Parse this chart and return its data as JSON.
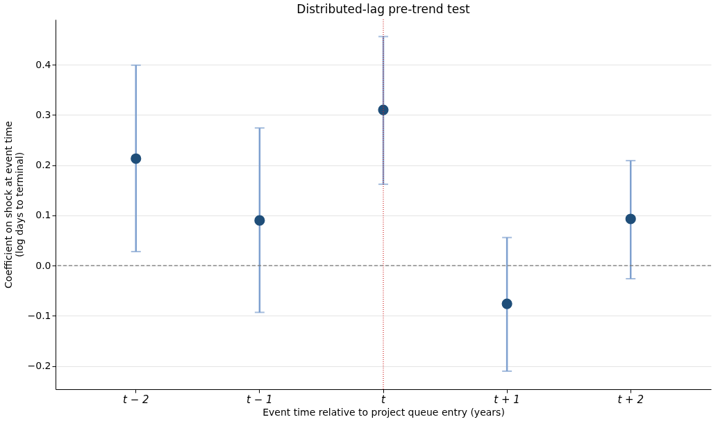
{
  "chart_data": {
    "type": "scatter",
    "title": "Distributed-lag pre-trend test",
    "xlabel": "Event time relative to project queue entry (years)",
    "ylabel": "Coefficient on shock at event time\n(log days to terminal)",
    "categories": [
      "t − 2",
      "t − 1",
      "t",
      "t + 1",
      "t + 2"
    ],
    "series": [
      {
        "color": "#1f4e79",
        "values": [
          0.213,
          0.09,
          0.31,
          -0.076,
          0.093
        ],
        "errors": [
          [
            0.028,
            0.399
          ],
          [
            -0.093,
            0.274
          ],
          [
            0.162,
            0.456
          ],
          [
            -0.21,
            0.056
          ],
          [
            -0.026,
            0.209
          ]
        ]
      }
    ],
    "ylim": [
      -0.246,
      0.49
    ],
    "yticks": [
      {
        "value": -0.2,
        "label": "−0.2"
      },
      {
        "value": -0.1,
        "label": "−0.1"
      },
      {
        "value": 0,
        "label": "0.0"
      },
      {
        "value": 0.1,
        "label": "0.1"
      },
      {
        "value": 0.2,
        "label": "0.2"
      },
      {
        "value": 0.3,
        "label": "0.3"
      },
      {
        "value": 0.4,
        "label": "0.4"
      }
    ],
    "grid": "y",
    "marker": "circle",
    "legend": false,
    "ref_lines": [
      {
        "axis": "y",
        "value": 0,
        "color": "#777777",
        "line_style": "dashed"
      },
      {
        "axis": "x",
        "value": "t",
        "color": "#cc2222",
        "line_style": "dotted"
      }
    ]
  }
}
